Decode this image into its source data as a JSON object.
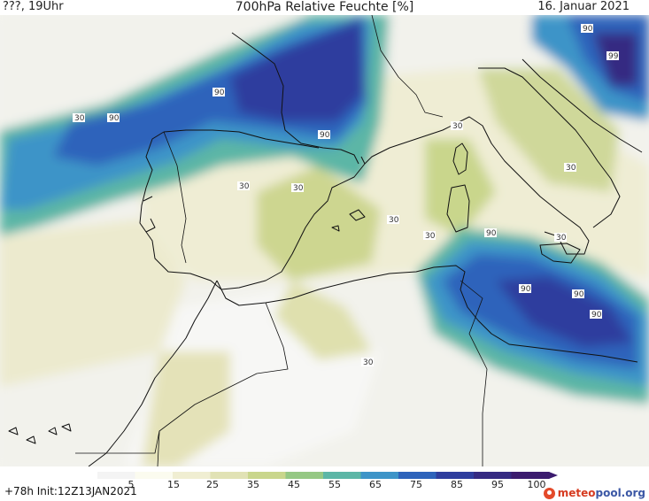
{
  "header": {
    "left": "???, 19Uhr",
    "title": "700hPa Relative Feuchte [%]",
    "right": "16. Januar 2021"
  },
  "contour_labels": [
    "30",
    "30",
    "30",
    "30",
    "30",
    "30",
    "30",
    "30",
    "30",
    "90",
    "90",
    "90",
    "90",
    "90",
    "90",
    "90",
    "90",
    "99"
  ],
  "colorbar": {
    "ticks": [
      "5",
      "15",
      "25",
      "35",
      "45",
      "55",
      "65",
      "75",
      "85",
      "95",
      "100"
    ],
    "colors": [
      "#f4f4f4",
      "#fbfbef",
      "#f0eed2",
      "#e1e2b5",
      "#c9d68c",
      "#95c884",
      "#5cb6a6",
      "#3d94c8",
      "#2d63bb",
      "#2e3d9e",
      "#352a82",
      "#3b1b6e"
    ]
  },
  "footer": {
    "left": "+78h  Init:12Z13JAN2021",
    "logo_a": "meteo",
    "logo_b": "pool.org"
  }
}
